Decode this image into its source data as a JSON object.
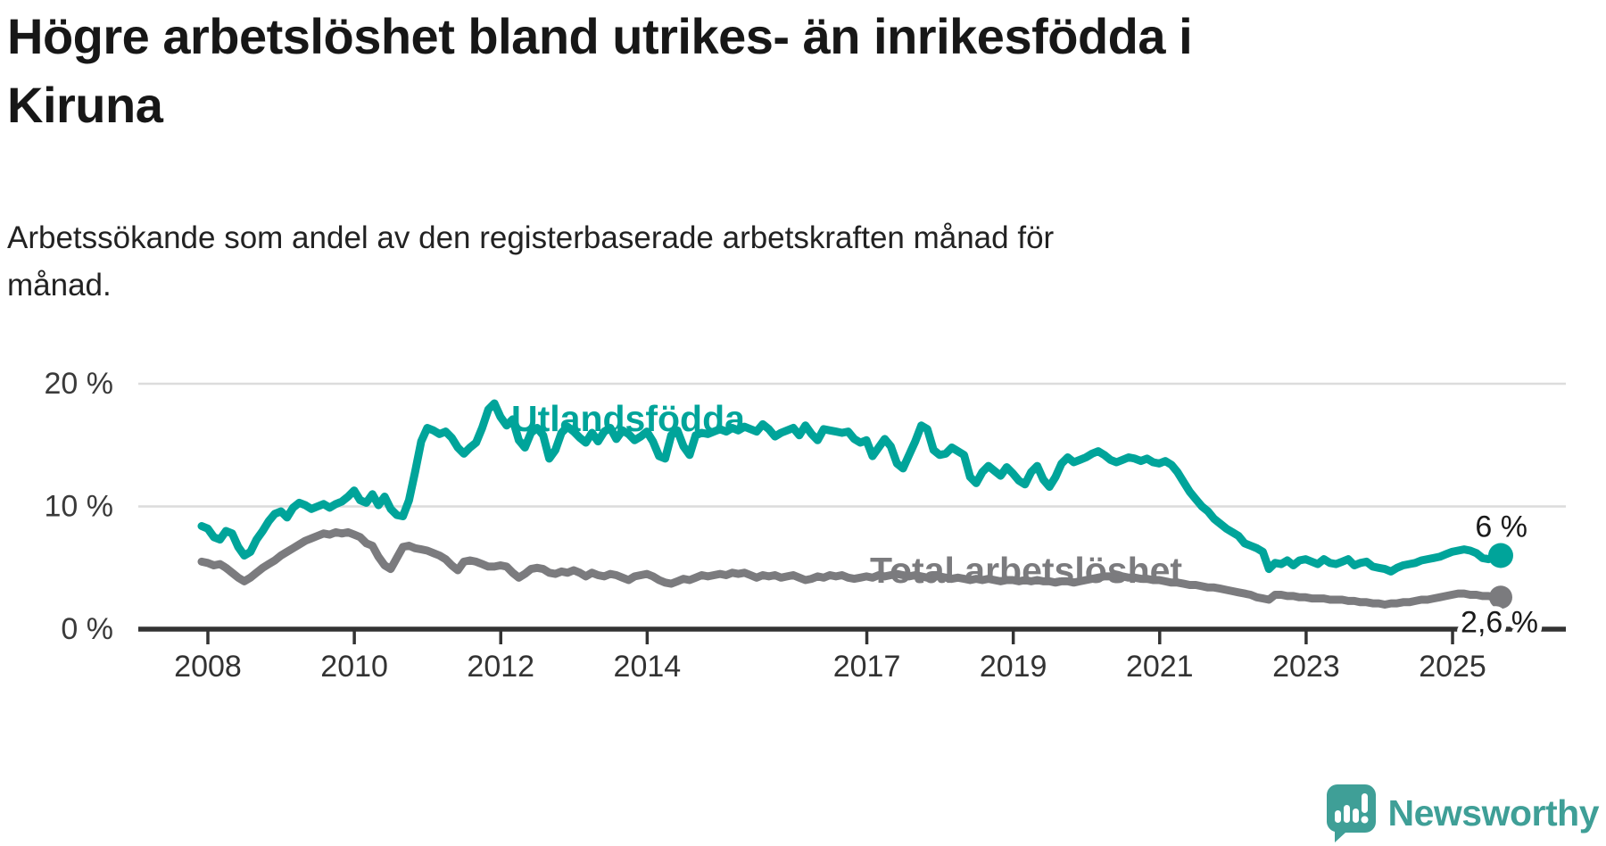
{
  "title_lines": [
    "Högre arbetslöshet bland utrikes- än inrikesfödda i",
    "Kiruna"
  ],
  "subtitle_lines": [
    "Arbetssökande som andel av den registerbaserade arbetskraften månad för",
    "månad."
  ],
  "branding": {
    "name": "Newsworthy"
  },
  "colors": {
    "accent_teal": "#00a49a",
    "series_gray": "#7b7b7e",
    "gridline": "#dcdcdc",
    "axis": "#333333",
    "tick_label": "#333333",
    "annotation": "#1a1a1a",
    "logo_teal": "#3f9f97"
  },
  "chart_data": {
    "type": "line",
    "unit": "%",
    "grid": "horizontal",
    "legend": "inline-labels",
    "ylim": [
      0,
      21.5
    ],
    "y_ticks": {
      "values": [
        0,
        10,
        20
      ],
      "labels": [
        "0 %",
        "10 %",
        "20 %"
      ]
    },
    "x_ticks": {
      "years": [
        2008,
        2010,
        2012,
        2014,
        2017,
        2019,
        2021,
        2023,
        2025
      ],
      "labels": [
        "2008",
        "2010",
        "2012",
        "2014",
        "2017",
        "2019",
        "2021",
        "2023",
        "2025"
      ]
    },
    "start": "2007-12",
    "end": "2025-09",
    "points_per_year": 12,
    "series": [
      {
        "name": "Utlandsfödda",
        "color": "#00a49a",
        "end_label": "6 %",
        "end_value": 6.0,
        "values": [
          8.4,
          8.2,
          7.5,
          7.3,
          8.0,
          7.8,
          6.7,
          6.0,
          6.3,
          7.3,
          8.0,
          8.8,
          9.4,
          9.6,
          9.1,
          9.9,
          10.3,
          10.1,
          9.8,
          10.0,
          10.2,
          9.9,
          10.2,
          10.4,
          10.8,
          11.3,
          10.5,
          10.3,
          11.0,
          10.1,
          10.8,
          9.8,
          9.3,
          9.2,
          10.5,
          12.8,
          15.3,
          16.4,
          16.2,
          15.9,
          16.1,
          15.6,
          14.8,
          14.3,
          14.8,
          15.2,
          16.4,
          17.9,
          18.4,
          17.3,
          16.6,
          17.1,
          15.4,
          14.8,
          16.0,
          16.4,
          15.8,
          13.9,
          14.6,
          16.0,
          16.5,
          16.1,
          15.6,
          15.2,
          16.0,
          15.3,
          16.1,
          16.4,
          15.5,
          16.2,
          15.9,
          15.4,
          15.7,
          16.1,
          15.3,
          14.1,
          13.9,
          15.8,
          16.2,
          14.9,
          14.2,
          15.8,
          16.0,
          15.9,
          16.1,
          16.3,
          16.1,
          16.4,
          16.2,
          16.5,
          16.3,
          16.1,
          16.7,
          16.3,
          15.7,
          16.0,
          16.2,
          16.4,
          15.8,
          16.6,
          15.9,
          15.4,
          16.3,
          16.2,
          16.1,
          16.0,
          16.1,
          15.5,
          15.2,
          15.4,
          14.1,
          14.8,
          15.5,
          14.9,
          13.5,
          13.1,
          14.2,
          15.3,
          16.6,
          16.3,
          14.6,
          14.2,
          14.3,
          14.8,
          14.5,
          14.2,
          12.4,
          11.9,
          12.8,
          13.3,
          12.9,
          12.5,
          13.2,
          12.7,
          12.1,
          11.8,
          12.8,
          13.3,
          12.2,
          11.6,
          12.4,
          13.5,
          14.0,
          13.6,
          13.8,
          14.0,
          14.3,
          14.5,
          14.2,
          13.8,
          13.6,
          13.8,
          14.0,
          13.9,
          13.7,
          13.9,
          13.6,
          13.5,
          13.7,
          13.4,
          12.8,
          12.0,
          11.2,
          10.6,
          10.0,
          9.6,
          9.0,
          8.6,
          8.2,
          7.9,
          7.6,
          7.0,
          6.8,
          6.6,
          6.3,
          4.9,
          5.4,
          5.3,
          5.6,
          5.2,
          5.6,
          5.7,
          5.5,
          5.3,
          5.7,
          5.4,
          5.3,
          5.5,
          5.7,
          5.2,
          5.4,
          5.5,
          5.1,
          5.0,
          4.9,
          4.7,
          5.0,
          5.2,
          5.3,
          5.4,
          5.6,
          5.7,
          5.8,
          5.9,
          6.1,
          6.3,
          6.4,
          6.5,
          6.4,
          6.2,
          5.8,
          5.7,
          5.9,
          6.0
        ]
      },
      {
        "name": "Total arbetslöshet",
        "color": "#7b7b7e",
        "end_label": "2,6 %",
        "end_value": 2.6,
        "values": [
          5.5,
          5.4,
          5.2,
          5.3,
          5.0,
          4.6,
          4.2,
          3.9,
          4.2,
          4.6,
          5.0,
          5.3,
          5.6,
          6.0,
          6.3,
          6.6,
          6.9,
          7.2,
          7.4,
          7.6,
          7.8,
          7.7,
          7.9,
          7.8,
          7.9,
          7.7,
          7.5,
          7.0,
          6.8,
          5.9,
          5.2,
          4.9,
          5.8,
          6.7,
          6.8,
          6.6,
          6.5,
          6.4,
          6.2,
          6.0,
          5.7,
          5.2,
          4.8,
          5.5,
          5.6,
          5.5,
          5.3,
          5.1,
          5.1,
          5.2,
          5.1,
          4.6,
          4.2,
          4.5,
          4.9,
          5.0,
          4.9,
          4.6,
          4.5,
          4.7,
          4.6,
          4.8,
          4.6,
          4.3,
          4.6,
          4.4,
          4.3,
          4.5,
          4.4,
          4.2,
          4.0,
          4.3,
          4.4,
          4.5,
          4.3,
          4.0,
          3.8,
          3.7,
          3.9,
          4.1,
          4.0,
          4.2,
          4.4,
          4.3,
          4.4,
          4.5,
          4.4,
          4.6,
          4.5,
          4.6,
          4.4,
          4.2,
          4.4,
          4.3,
          4.4,
          4.2,
          4.3,
          4.4,
          4.2,
          4.0,
          4.1,
          4.3,
          4.2,
          4.4,
          4.3,
          4.4,
          4.2,
          4.1,
          4.2,
          4.3,
          4.2,
          4.4,
          4.3,
          4.4,
          4.5,
          4.4,
          4.3,
          4.4,
          4.3,
          4.2,
          4.3,
          4.3,
          4.2,
          4.1,
          4.2,
          4.1,
          4.0,
          4.1,
          4.0,
          4.1,
          4.0,
          3.9,
          4.0,
          4.0,
          3.9,
          4.0,
          3.9,
          4.0,
          3.9,
          3.9,
          3.8,
          3.9,
          3.9,
          3.8,
          3.9,
          4.0,
          4.1,
          4.2,
          4.3,
          4.3,
          4.2,
          4.3,
          4.2,
          4.2,
          4.1,
          4.1,
          4.0,
          4.0,
          3.9,
          3.8,
          3.8,
          3.7,
          3.6,
          3.6,
          3.5,
          3.4,
          3.4,
          3.3,
          3.2,
          3.1,
          3.0,
          2.9,
          2.8,
          2.6,
          2.5,
          2.4,
          2.8,
          2.8,
          2.7,
          2.7,
          2.6,
          2.6,
          2.5,
          2.5,
          2.5,
          2.4,
          2.4,
          2.4,
          2.3,
          2.3,
          2.2,
          2.2,
          2.1,
          2.1,
          2.0,
          2.1,
          2.1,
          2.2,
          2.2,
          2.3,
          2.4,
          2.4,
          2.5,
          2.6,
          2.7,
          2.8,
          2.9,
          2.9,
          2.8,
          2.8,
          2.7,
          2.7,
          2.6,
          2.6
        ]
      }
    ]
  }
}
